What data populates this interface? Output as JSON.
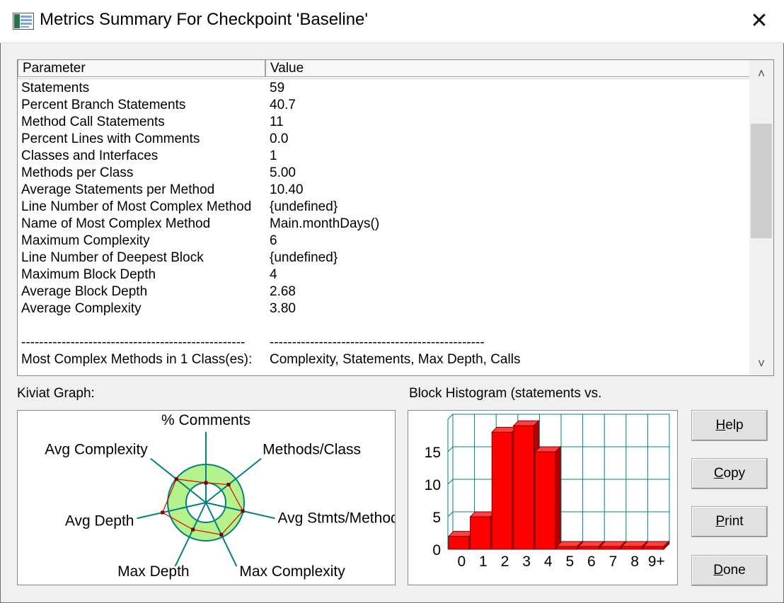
{
  "window": {
    "title": "Metrics Summary For Checkpoint 'Baseline'",
    "close_glyph": "✕"
  },
  "table": {
    "headers": [
      "Parameter",
      "Value"
    ],
    "rows": [
      [
        "Statements",
        "59"
      ],
      [
        "Percent Branch Statements",
        "40.7"
      ],
      [
        "Method Call Statements",
        "11"
      ],
      [
        "Percent Lines with Comments",
        "0.0"
      ],
      [
        "Classes and Interfaces",
        "1"
      ],
      [
        "Methods per Class",
        "5.00"
      ],
      [
        "Average Statements per Method",
        "10.40"
      ],
      [
        "Line Number of Most Complex Method",
        "{undefined}"
      ],
      [
        "Name of Most Complex Method",
        "Main.monthDays()"
      ],
      [
        "Maximum Complexity",
        "6"
      ],
      [
        "Line Number of Deepest Block",
        "{undefined}"
      ],
      [
        "Maximum Block Depth",
        "4"
      ],
      [
        "Average Block Depth",
        "2.68"
      ],
      [
        "Average Complexity",
        "3.80"
      ],
      [
        "",
        ""
      ],
      [
        "--------------------------------------------------",
        "------------------------------------------------"
      ],
      [
        "Most Complex Methods in 1 Class(es):",
        "Complexity, Statements, Max Depth, Calls"
      ]
    ],
    "scroll": {
      "up_glyph": "˄",
      "down_glyph": "˅"
    }
  },
  "kiviat": {
    "label": "Kiviat Graph:",
    "axes": [
      "% Comments",
      "Methods/Class",
      "Avg Stmts/Method",
      "Max Complexity",
      "Max Depth",
      "Avg Depth",
      "Avg Complexity"
    ],
    "values": [
      0.0,
      0.5,
      0.98,
      0.86,
      0.55,
      1.34,
      0.98
    ],
    "colors": {
      "band": "#b6f28c",
      "axis": "#008080",
      "polygon": "#e00000"
    }
  },
  "histogram": {
    "label": "Block Histogram (statements vs.",
    "chart_data": {
      "type": "bar",
      "categories": [
        "0",
        "1",
        "2",
        "3",
        "4",
        "5",
        "6",
        "7",
        "8",
        "9+"
      ],
      "values": [
        2,
        5,
        18,
        19,
        15,
        0,
        0,
        0,
        0,
        0
      ],
      "yticks": [
        0,
        5,
        10,
        15
      ],
      "ylim": [
        0,
        20
      ],
      "colors": {
        "bar": "#ff0000",
        "grid": "#008080"
      }
    }
  },
  "buttons": [
    {
      "id": "help",
      "prefix": "",
      "mnemonic": "H",
      "rest": "elp"
    },
    {
      "id": "copy",
      "prefix": "",
      "mnemonic": "C",
      "rest": "opy"
    },
    {
      "id": "print",
      "prefix": "",
      "mnemonic": "P",
      "rest": "rint"
    },
    {
      "id": "done",
      "prefix": "",
      "mnemonic": "D",
      "rest": "one"
    }
  ]
}
